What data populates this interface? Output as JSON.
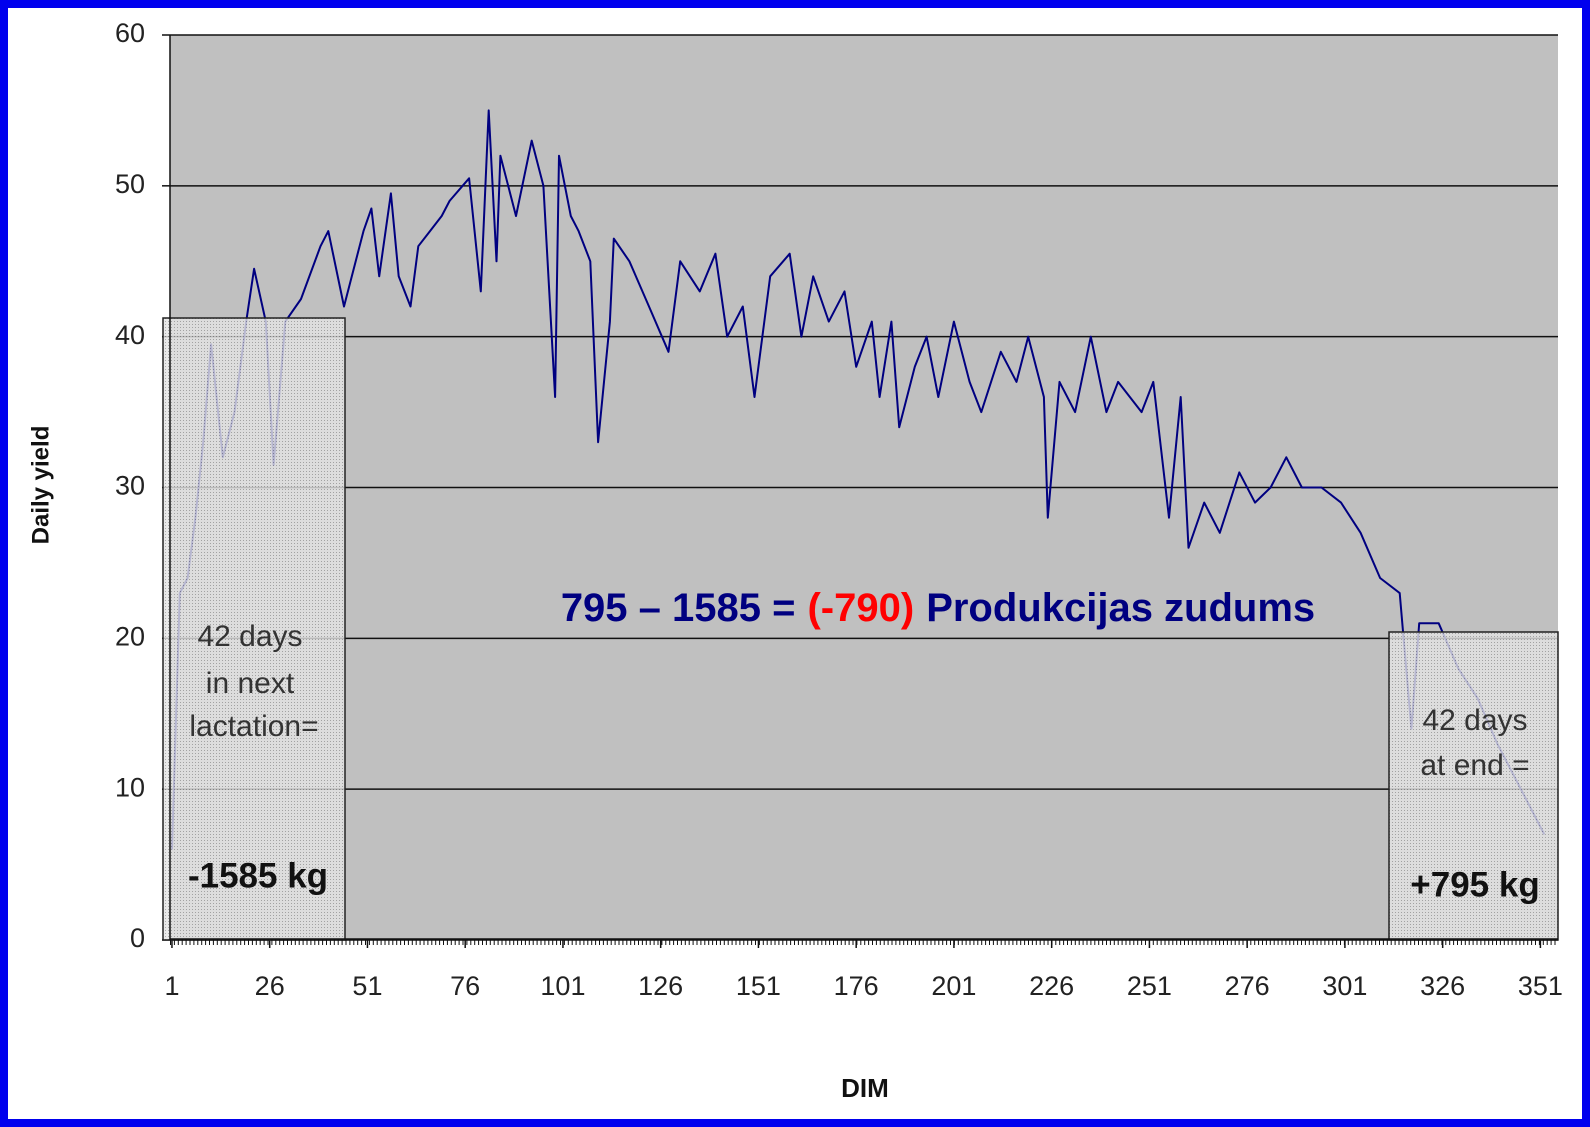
{
  "chart_data": {
    "type": "line",
    "ylabel": "Daily yield",
    "xlabel": "DIM",
    "xlim": [
      0.5,
      355.5
    ],
    "xticks": [
      1,
      26,
      51,
      76,
      101,
      126,
      151,
      176,
      201,
      226,
      251,
      276,
      301,
      326,
      351
    ],
    "ylim": [
      0,
      60
    ],
    "yticks": [
      0,
      10,
      20,
      30,
      40,
      50,
      60
    ],
    "grid": true,
    "series": [
      {
        "color": "#000080",
        "x": [
          1,
          3,
          5,
          7,
          9,
          11,
          14,
          17,
          20,
          22,
          25,
          27,
          30,
          34,
          39,
          41,
          45,
          50,
          52,
          54,
          57,
          59,
          62,
          64,
          67,
          70,
          72,
          77,
          80,
          82,
          84,
          85,
          89,
          93,
          96,
          99,
          100,
          103,
          105,
          108,
          110,
          113,
          114,
          118,
          123,
          128,
          131,
          136,
          140,
          143,
          147,
          150,
          154,
          159,
          162,
          165,
          169,
          173,
          176,
          180,
          182,
          185,
          187,
          191,
          194,
          197,
          201,
          205,
          208,
          213,
          217,
          220,
          224,
          225,
          228,
          232,
          236,
          240,
          243,
          249,
          252,
          256,
          259,
          261,
          265,
          269,
          274,
          278,
          282,
          286,
          290,
          295,
          300,
          305,
          310,
          315,
          318,
          320,
          325,
          330,
          335,
          340,
          346,
          352
        ],
        "values": [
          6,
          23,
          24,
          28,
          33,
          39.5,
          32,
          35,
          41,
          44.5,
          41,
          31.5,
          41,
          42.5,
          46,
          47,
          42,
          47,
          48.5,
          44,
          49.5,
          44,
          42,
          46,
          47,
          48,
          49,
          50.5,
          43,
          55,
          45,
          52,
          48,
          53,
          50,
          36,
          52,
          48,
          47,
          45,
          33,
          41,
          46.5,
          45,
          42,
          39,
          45,
          43,
          45.5,
          40,
          42,
          36,
          44,
          45.5,
          40,
          44,
          41,
          43,
          38,
          41,
          36,
          41,
          34,
          38,
          40,
          36,
          41,
          37,
          35,
          39,
          37,
          40,
          36,
          28,
          37,
          35,
          40,
          35,
          37,
          35,
          37,
          28,
          36,
          26,
          29,
          27,
          31,
          29,
          30,
          32,
          30,
          30,
          29,
          27,
          24,
          23,
          14,
          21,
          21,
          18,
          16,
          13,
          10,
          7
        ]
      }
    ],
    "annotations": {
      "left_box": [
        "42 days",
        "in next",
        "lactation="
      ],
      "left_total": "-1585 kg",
      "right_box": [
        "42 days",
        "at end ="
      ],
      "right_total": "+795 kg",
      "formula": [
        "795 – 1585 =",
        "(-790)",
        "Produkcijas zudums"
      ]
    }
  }
}
